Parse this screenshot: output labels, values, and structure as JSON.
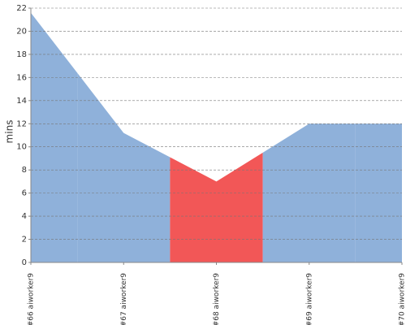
{
  "chart_data": {
    "type": "area",
    "y_label": "mins",
    "categories": [
      "#66 aiworker9",
      "#67 aiworker9",
      "#68 aiworker9",
      "#69 aiworker9",
      "#70 aiworker9"
    ],
    "values": [
      21.6,
      11.2,
      7.0,
      12.0,
      12.0
    ],
    "point_colors": [
      "#8fb1da",
      "#8fb1da",
      "#f25757",
      "#8fb1da",
      "#8fb1da"
    ],
    "ylim": [
      0,
      22
    ],
    "yticks": [
      0,
      2,
      4,
      6,
      8,
      10,
      12,
      14,
      16,
      18,
      20,
      22
    ],
    "grid": true
  }
}
